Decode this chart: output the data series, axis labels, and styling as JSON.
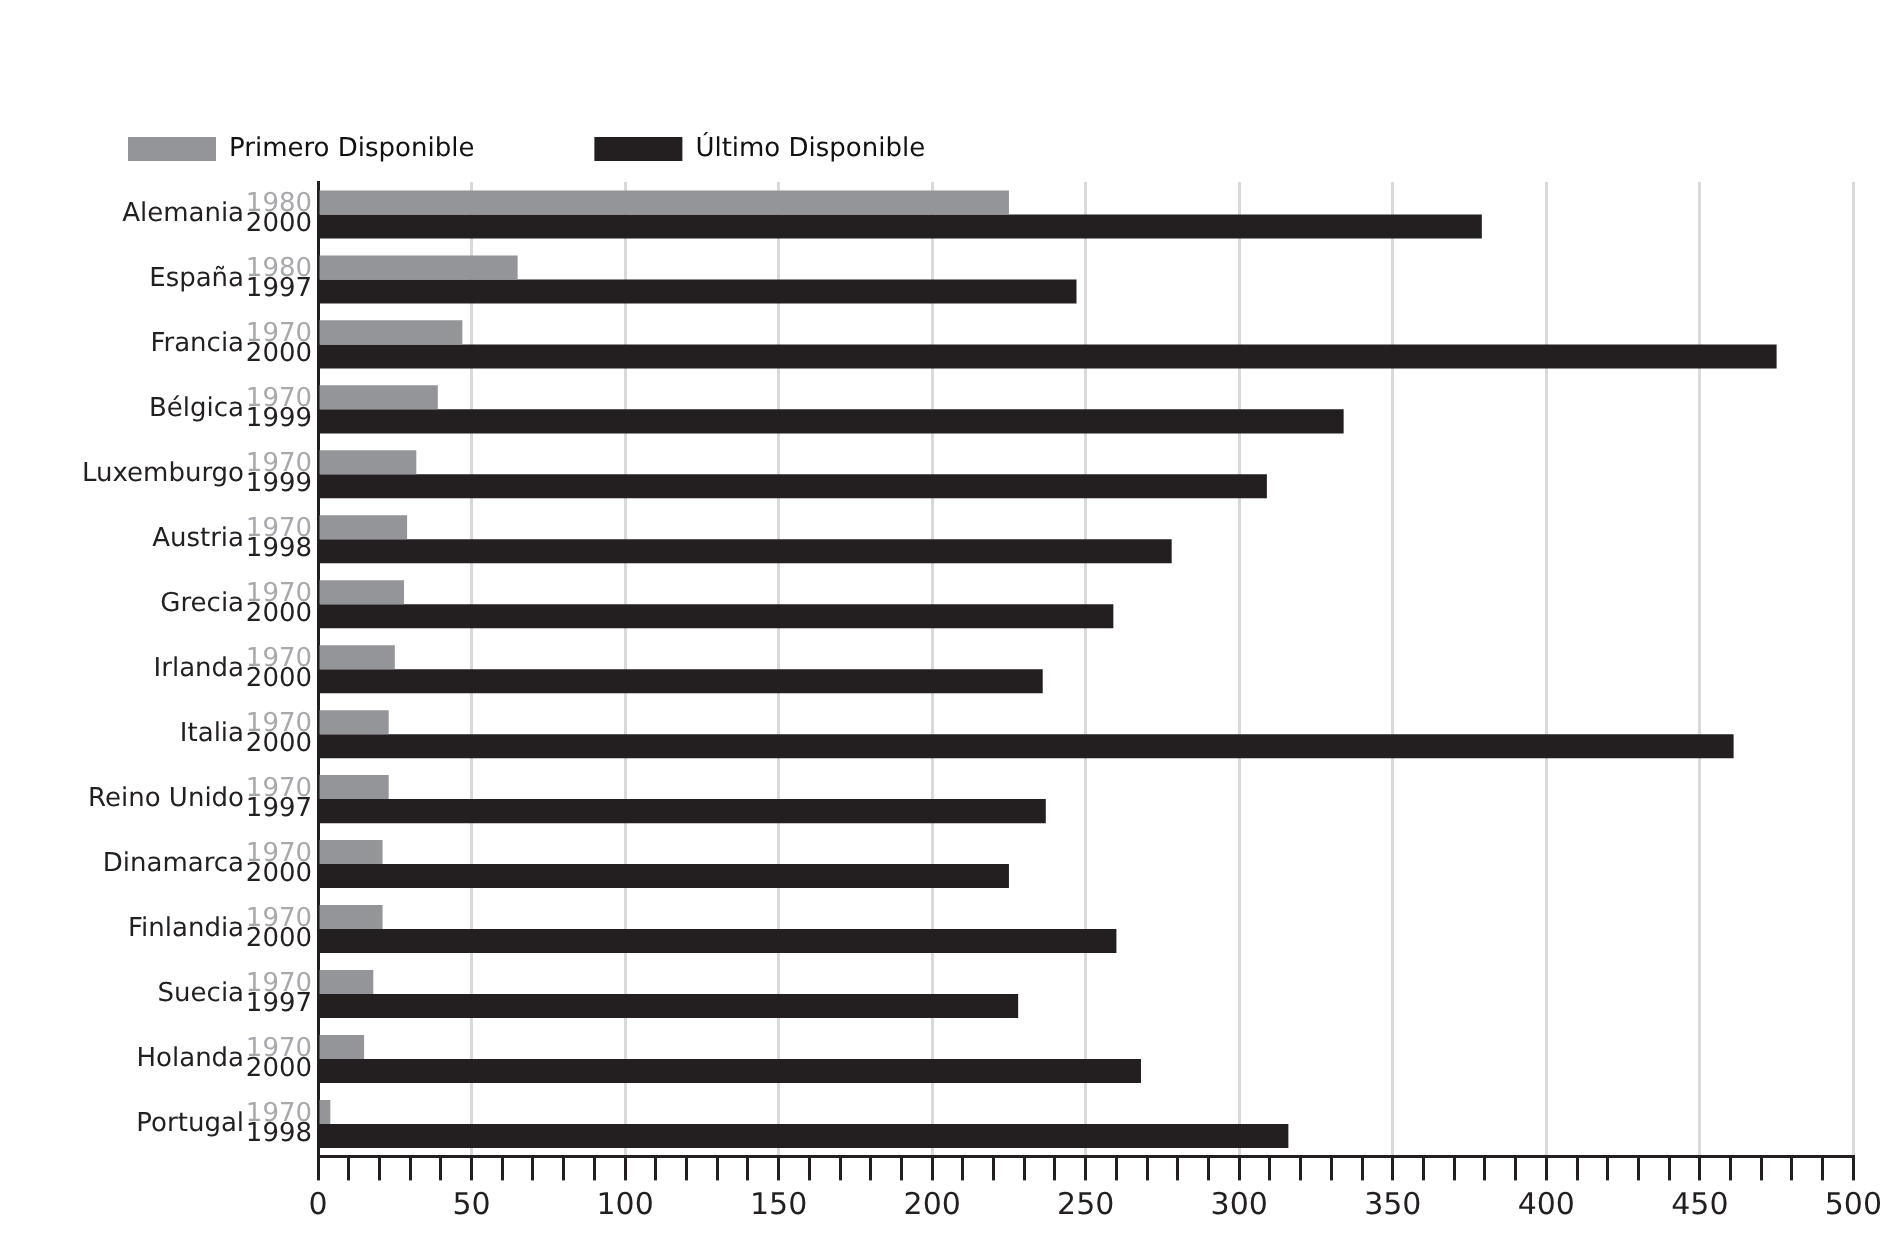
{
  "chart_data": {
    "type": "bar",
    "orientation": "horizontal",
    "categories": [
      "Alemania",
      "España",
      "Francia",
      "Bélgica",
      "Luxemburgo",
      "Austria",
      "Grecia",
      "Irlanda",
      "Italia",
      "Reino Unido",
      "Dinamarca",
      "Finlandia",
      "Suecia",
      "Holanda",
      "Portugal"
    ],
    "series": [
      {
        "name": "Primero Disponible",
        "color": "#939598",
        "values": [
          225,
          65,
          47,
          39,
          32,
          29,
          28,
          25,
          23,
          23,
          21,
          21,
          18,
          15,
          4
        ]
      },
      {
        "name": "Último Disponible",
        "color": "#231f20",
        "values": [
          379,
          247,
          475,
          334,
          309,
          278,
          259,
          236,
          461,
          237,
          225,
          260,
          228,
          268,
          316
        ]
      }
    ],
    "xlim": [
      0,
      500
    ],
    "xticks": [
      0,
      {
        "value": 10,
        "label": null
      },
      {
        "value": 20,
        "label": null
      },
      {
        "value": 30,
        "label": null
      },
      {
        "value": 40,
        "label": null
      },
      50,
      {
        "value": 60,
        "label": null
      },
      {
        "value": 70,
        "label": null
      },
      {
        "value": 80,
        "label": null
      },
      {
        "value": 90,
        "label": null
      },
      100,
      {
        "value": 110,
        "label": null
      },
      {
        "value": 120,
        "label": null
      },
      {
        "value": 130,
        "label": null
      },
      {
        "value": 140,
        "label": null
      },
      150,
      {
        "value": 160,
        "label": null
      },
      {
        "value": 170,
        "label": null
      },
      {
        "value": 180,
        "label": null
      },
      {
        "value": 190,
        "label": null
      },
      200,
      {
        "value": 210,
        "label": null
      },
      {
        "value": 220,
        "label": null
      },
      {
        "value": 230,
        "label": null
      },
      {
        "value": 240,
        "label": null
      },
      250,
      {
        "value": 260,
        "label": null
      },
      {
        "value": 270,
        "label": null
      },
      {
        "value": 280,
        "label": null
      },
      {
        "value": 290,
        "label": null
      },
      300,
      {
        "value": 310,
        "label": null
      },
      {
        "value": 320,
        "label": null
      },
      {
        "value": 330,
        "label": null
      },
      {
        "value": 340,
        "label": null
      },
      350,
      {
        "value": 360,
        "label": null
      },
      {
        "value": 370,
        "label": null
      },
      {
        "value": 380,
        "label": null
      },
      {
        "value": 390,
        "label": null
      },
      400,
      {
        "value": 410,
        "label": null
      },
      {
        "value": 420,
        "label": null
      },
      {
        "value": 430,
        "label": null
      },
      {
        "value": 440,
        "label": null
      },
      450,
      {
        "value": 460,
        "label": null
      },
      {
        "value": 470,
        "label": null
      },
      {
        "value": 480,
        "label": null
      },
      {
        "value": 490,
        "label": null
      },
      500
    ],
    "grid": "x",
    "legend": "top left",
    "annotations": [
      "1980",
      "2000",
      "1980",
      "1997",
      "1970",
      "2000",
      "1970",
      "1999",
      "1970",
      "1999",
      "1970",
      "1998",
      "1970",
      "2000",
      "1970",
      "2000",
      "1970",
      "2000",
      "1970",
      "1997",
      "1970",
      "2000",
      "1970",
      "2000",
      "1970",
      "1997",
      "1970",
      "2000",
      "1970",
      "1998"
    ]
  }
}
